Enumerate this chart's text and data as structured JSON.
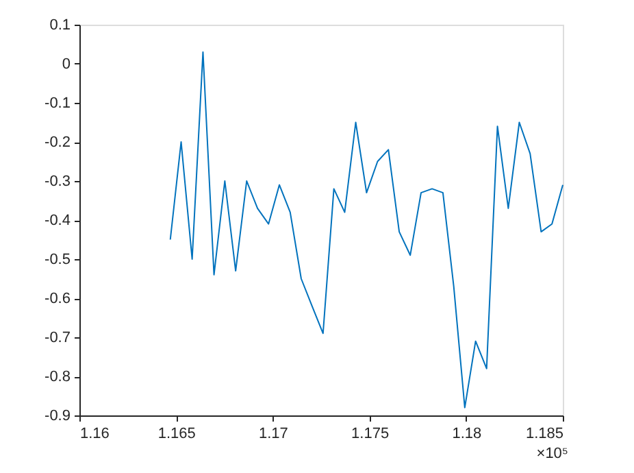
{
  "chart_data": {
    "type": "line",
    "color": "#0072bd",
    "x": [
      1.1647,
      1.16526,
      1.16583,
      1.16639,
      1.16696,
      1.16752,
      1.16808,
      1.16865,
      1.16921,
      1.16978,
      1.17034,
      1.1709,
      1.17147,
      1.17203,
      1.1726,
      1.17316,
      1.17372,
      1.17429,
      1.17485,
      1.17542,
      1.17598,
      1.17654,
      1.17711,
      1.17767,
      1.17824,
      1.1788,
      1.17936,
      1.17993,
      1.18049,
      1.18106,
      1.18162,
      1.18218,
      1.18275,
      1.18331,
      1.18388,
      1.18444,
      1.185
    ],
    "values": [
      -0.45,
      -0.2,
      -0.5,
      0.03,
      -0.54,
      -0.3,
      -0.53,
      -0.3,
      -0.37,
      -0.41,
      -0.31,
      -0.38,
      -0.55,
      -0.62,
      -0.69,
      -0.32,
      -0.38,
      -0.15,
      -0.33,
      -0.25,
      -0.22,
      -0.43,
      -0.49,
      -0.33,
      -0.32,
      -0.33,
      -0.57,
      -0.88,
      -0.71,
      -0.78,
      -0.16,
      -0.37,
      -0.15,
      -0.23,
      -0.43,
      -0.41,
      -0.31
    ],
    "xlim": [
      1.16,
      1.185
    ],
    "xticks": [
      1.16,
      1.165,
      1.17,
      1.175,
      1.18,
      1.185
    ],
    "ylim": [
      -0.9,
      0.1
    ],
    "yticks": [
      0.1,
      0,
      -0.1,
      -0.2,
      -0.3,
      -0.4,
      -0.5,
      -0.6,
      -0.7,
      -0.8,
      -0.9
    ],
    "grid": false,
    "annotations": [
      "×10⁵"
    ]
  }
}
